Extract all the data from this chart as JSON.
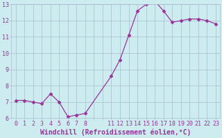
{
  "x": [
    0,
    1,
    2,
    3,
    4,
    5,
    6,
    7,
    8,
    11,
    12,
    13,
    14,
    15,
    16,
    17,
    18,
    19,
    20,
    21,
    22,
    23
  ],
  "y": [
    7.1,
    7.1,
    7.0,
    6.9,
    7.5,
    7.0,
    6.1,
    6.2,
    6.3,
    8.6,
    9.6,
    11.1,
    12.6,
    13.0,
    13.2,
    12.6,
    11.9,
    12.0,
    12.1,
    12.1,
    12.0,
    11.8
  ],
  "line_color": "#993399",
  "marker": "D",
  "marker_size": 2.5,
  "bg_color": "#ccecf0",
  "grid_color": "#aabbcc",
  "tick_color": "#993399",
  "xlabel": "Windchill (Refroidissement éolien,°C)",
  "xlabel_fontsize": 7,
  "ylim": [
    6,
    13
  ],
  "yticks": [
    6,
    7,
    8,
    9,
    10,
    11,
    12,
    13
  ],
  "xticks": [
    0,
    1,
    2,
    3,
    4,
    5,
    6,
    7,
    8,
    11,
    12,
    13,
    14,
    15,
    16,
    17,
    18,
    19,
    20,
    21,
    22,
    23
  ],
  "xlim": [
    -0.5,
    23.5
  ],
  "tick_fontsize": 6
}
